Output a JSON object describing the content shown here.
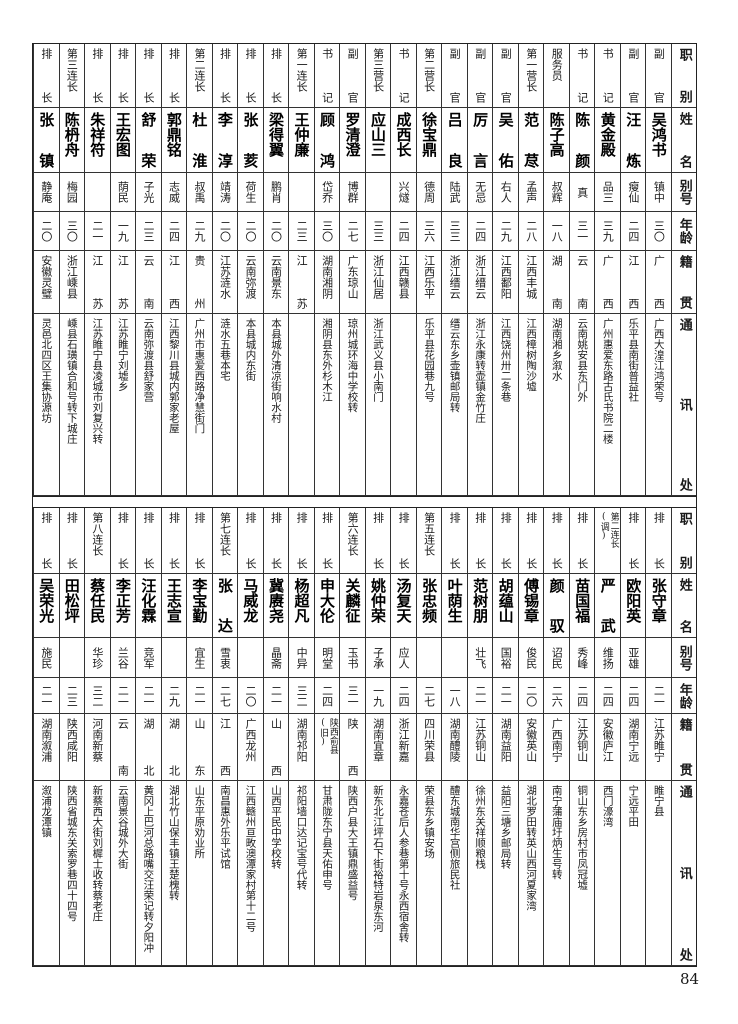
{
  "headers": {
    "role": "职别",
    "name": "姓名",
    "alias": "别号",
    "age": "年龄",
    "origin": "籍贯",
    "address": "通讯处"
  },
  "top_rows": [
    {
      "role": "副官",
      "name": "吴鸿书",
      "alias": "镇中",
      "age": "三〇",
      "origin": "广西",
      "address": "广西大湟江鸿荣号"
    },
    {
      "role": "副官",
      "name": "汪炼",
      "alias": "瘦仙",
      "age": "二四",
      "origin": "江西",
      "address": "乐平县南街普益社"
    },
    {
      "role": "书记",
      "name": "黄金殿",
      "alias": "品三",
      "age": "三九",
      "origin": "广西",
      "address": "广州惠爱东路古氏书院二楼"
    },
    {
      "role": "书记",
      "name": "陈颜",
      "alias": "真",
      "age": "三一",
      "origin": "云南",
      "address": "云南姚安县东门外"
    },
    {
      "role": "服务员",
      "name": "陈子高",
      "alias": "叔辉",
      "age": "一八",
      "origin": "湖南",
      "address": "湖南湘乡溆水"
    },
    {
      "role": "第一营长",
      "name": "范荩",
      "alias": "孟声",
      "age": "二八",
      "origin": "江西丰城",
      "address": "江西樟树陶沙墟"
    },
    {
      "role": "副官",
      "name": "吴佑",
      "alias": "右人",
      "age": "二九",
      "origin": "江西鄱阳",
      "address": "江西饶州卅二条巷"
    },
    {
      "role": "副官",
      "name": "厉言",
      "alias": "无忌",
      "age": "二四",
      "origin": "浙江缙云",
      "address": "浙江永康转壶镇金竹庄"
    },
    {
      "role": "副官",
      "name": "吕良",
      "alias": "陆武",
      "age": "三三",
      "origin": "浙江缙云",
      "address": "缙云东乡壶镇邮局转"
    },
    {
      "role": "第二营长",
      "name": "徐宝鼎",
      "alias": "德周",
      "age": "三六",
      "origin": "江西乐平",
      "address": "乐平县花园巷九号"
    },
    {
      "role": "书记",
      "name": "成西长",
      "alias": "兴燧",
      "age": "二四",
      "origin": "江西赣县",
      "address": ""
    },
    {
      "role": "第三营长",
      "name": "应山三",
      "alias": "",
      "age": "三三",
      "origin": "浙江仙居",
      "address": "浙江武义县小南门"
    },
    {
      "role": "副官",
      "name": "罗清澄",
      "alias": "博群",
      "age": "二七",
      "origin": "广东琼山",
      "address": "琼州城环海中学校转"
    },
    {
      "role": "书记",
      "name": "顾鸿",
      "alias": "岱乔",
      "age": "三〇",
      "origin": "湖南湘阴",
      "address": "湘阴县东外杉木江"
    },
    {
      "role": "第一连长",
      "name": "王仲廉",
      "alias": "",
      "age": "二三",
      "origin": "江苏",
      "address": ""
    },
    {
      "role": "排长",
      "name": "梁得翼",
      "alias": "鹏肖",
      "age": "二〇",
      "origin": "云南景东",
      "address": "本县城外清凉街响水村"
    },
    {
      "role": "排长",
      "name": "张荄",
      "alias": "荷生",
      "age": "二〇",
      "origin": "云南弥渡",
      "address": "本县城内东街"
    },
    {
      "role": "排长",
      "name": "李淳",
      "alias": "靖涛",
      "age": "二〇",
      "origin": "江苏涟水",
      "address": "涟水五巷本宅"
    },
    {
      "role": "第二连长",
      "name": "杜淮",
      "alias": "叔禹",
      "age": "二九",
      "origin": "贵州",
      "address": "广州市惠爱西路净慧街门"
    },
    {
      "role": "排长",
      "name": "郭鼎铭",
      "alias": "志威",
      "age": "二四",
      "origin": "江西",
      "address": "江西黎川县城内郭家老屋"
    },
    {
      "role": "排长",
      "name": "舒荣",
      "alias": "子光",
      "age": "二三",
      "origin": "云南",
      "address": "云南弥渡县舒家营"
    },
    {
      "role": "排长",
      "name": "王宏图",
      "alias": "荫民",
      "age": "一九",
      "origin": "江苏",
      "address": "江苏睢宁刘墟乡"
    },
    {
      "role": "排长",
      "name": "朱祥符",
      "alias": "",
      "age": "二一",
      "origin": "江苏",
      "address": "江苏睢宁县凌城市刘复兴转"
    },
    {
      "role": "第三连长",
      "name": "陈枬舟",
      "alias": "梅园",
      "age": "三〇",
      "origin": "浙江嵊县",
      "address": "嵊县石璜镇合和号转下城庄"
    },
    {
      "role": "排长",
      "name": "张镇",
      "alias": "静庵",
      "age": "二〇",
      "origin": "安徽灵璧",
      "address": "灵邑北四区王集协源坊"
    }
  ],
  "bottom_rows": [
    {
      "role": "排长",
      "name": "张守章",
      "alias": "",
      "age": "二一",
      "origin": "江苏睢宁",
      "address": "睢宁县"
    },
    {
      "role": "排长",
      "name": "欧阳英",
      "alias": "亚雄",
      "age": "二四",
      "origin": "湖南宁远",
      "address": "宁远平田"
    },
    {
      "role": "第二连长(调)",
      "name": "严武",
      "alias": "维扬",
      "age": "二四",
      "origin": "安徽庐江",
      "address": "西门濠湾"
    },
    {
      "role": "排长",
      "name": "苗国福",
      "alias": "秀峰",
      "age": "二四",
      "origin": "江苏铜山",
      "address": "铜山东乡房村市凤冠墟"
    },
    {
      "role": "排长",
      "name": "颜驭",
      "alias": "诏民",
      "age": "二六",
      "origin": "广西南宁",
      "address": "南宁蒲庙圩炳生号转"
    },
    {
      "role": "排长",
      "name": "傅锡章",
      "alias": "俊民",
      "age": "二〇",
      "origin": "安徽英山",
      "address": "湖北罗田转英山西河夏家湾"
    },
    {
      "role": "排长",
      "name": "胡蕴山",
      "alias": "国裕",
      "age": "二一",
      "origin": "湖南益阳",
      "address": "益阳三塘乡邮局转"
    },
    {
      "role": "排长",
      "name": "范树朋",
      "alias": "壮飞",
      "age": "二一",
      "origin": "江苏铜山",
      "address": "徐州东关祥顺粮栈"
    },
    {
      "role": "排长",
      "name": "叶荫生",
      "alias": "",
      "age": "一八",
      "origin": "湖南醴陵",
      "address": "醴东城南华宫侧旅民社"
    },
    {
      "role": "第五连长",
      "name": "张忠频",
      "alias": "",
      "age": "二七",
      "origin": "四川荣县",
      "address": "荣县东乡镇安场"
    },
    {
      "role": "排长",
      "name": "汤复天",
      "alias": "应人",
      "age": "二四",
      "origin": "浙江新嘉",
      "address": "永嘉苍后人参巷第十号永西宿舍转"
    },
    {
      "role": "排长",
      "name": "姚仲荣",
      "alias": "子承",
      "age": "一九",
      "origin": "湖南宜章",
      "address": "新东北江坪石下街裕特岩泉东河"
    },
    {
      "role": "第六连长",
      "name": "关麟征",
      "alias": "玉书",
      "age": "三一",
      "origin": "陕西",
      "address": "陕西户县大王镇鼎盛益号"
    },
    {
      "role": "排长",
      "name": "申大伦",
      "alias": "明堂",
      "age": "二四",
      "origin": "陕西俞县(旧)",
      "address": "甘肃陇东宁县天佑申号"
    },
    {
      "role": "排长",
      "name": "杨超凡",
      "alias": "中异",
      "age": "三二",
      "origin": "湖南祁阳",
      "address": "祁阳墙口达记宝号代转"
    },
    {
      "role": "排长",
      "name": "冀赓尧",
      "alias": "晶斋",
      "age": "二一",
      "origin": "山西",
      "address": "山西平民中学校转"
    },
    {
      "role": "排长",
      "name": "马威龙",
      "alias": "",
      "age": "二〇",
      "origin": "广西龙州",
      "address": "江西赣州亘畋澳潭家村第十二号"
    },
    {
      "role": "第七连长",
      "name": "张达",
      "alias": "雪衷",
      "age": "二七",
      "origin": "江西",
      "address": "南昌惠外乐平试馆"
    },
    {
      "role": "排长",
      "name": "李宝勤",
      "alias": "宜生",
      "age": "二一",
      "origin": "山东",
      "address": "山东平原劝业所"
    },
    {
      "role": "排长",
      "name": "王志宣",
      "alias": "",
      "age": "二九",
      "origin": "湖北",
      "address": "湖北竹山保丰镇王楚槐转"
    },
    {
      "role": "排长",
      "name": "汪化霖",
      "alias": "竞军",
      "age": "二一",
      "origin": "湖北",
      "address": "黄冈上巴河总路嘴交汪荣记转夕阳冲"
    },
    {
      "role": "排长",
      "name": "李正芳",
      "alias": "兰谷",
      "age": "二一",
      "origin": "云南",
      "address": "云南景谷城外大街"
    },
    {
      "role": "第八连长",
      "name": "蔡任民",
      "alias": "华珍",
      "age": "三二",
      "origin": "河南新蔡",
      "address": "新蔡西大街刘樨士收转蔡老庄"
    },
    {
      "role": "排长",
      "name": "田松坪",
      "alias": "",
      "age": "二三",
      "origin": "陕西咸阳",
      "address": "陕西省城东关索罗巷四十四号"
    },
    {
      "role": "排长",
      "name": "吴荣光",
      "alias": "施民",
      "age": "二一",
      "origin": "湖南溆浦",
      "address": "溆浦龙潭镇"
    }
  ],
  "page_number": "84"
}
